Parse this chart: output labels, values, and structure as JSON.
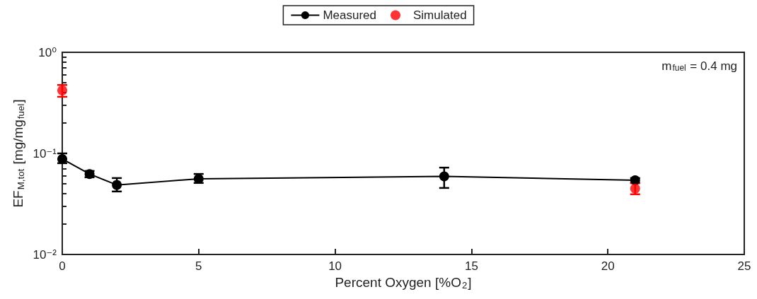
{
  "chart_data": {
    "type": "line",
    "xlabel": "Percent Oxygen [%O$_{2}$]",
    "ylabel": "EF$_{M,tot}$ [mg/mg$_{fuel}$]",
    "annotations": [
      "m$_{fuel}$ = 0.4 mg"
    ],
    "series": [
      {
        "name": "Measured",
        "color": "#000000",
        "x": [
          0,
          1,
          2,
          5,
          14,
          21
        ],
        "values": [
          0.088,
          0.0625,
          0.0487,
          0.056,
          0.0593,
          0.0542
        ],
        "errors": [
          [
            0.08,
            0.1
          ],
          [
            0.058,
            0.067
          ],
          [
            0.042,
            0.057
          ],
          [
            0.051,
            0.0626
          ],
          [
            0.0455,
            0.0723
          ],
          [
            0.051,
            0.057
          ]
        ]
      },
      {
        "name": "Simulated",
        "type": "scatter",
        "color": "#ff0000",
        "x": [
          0,
          21
        ],
        "values": [
          0.42,
          0.0448
        ],
        "errors": [
          [
            0.363,
            0.475
          ],
          [
            0.0394,
            0.0507
          ]
        ]
      }
    ],
    "xlim": [
      0,
      25
    ],
    "xticks": [
      0,
      5,
      10,
      15,
      20,
      25
    ],
    "ylim": [
      0.01,
      1
    ],
    "log": true,
    "yticks": [
      {
        "value": 0.01,
        "label": "10⁻²"
      },
      {
        "value": 0.02,
        "label": null
      },
      {
        "value": 0.03,
        "label": null
      },
      {
        "value": 0.04,
        "label": null
      },
      {
        "value": 0.05,
        "label": null
      },
      {
        "value": 0.06,
        "label": null
      },
      {
        "value": 0.07,
        "label": null
      },
      {
        "value": 0.08,
        "label": null
      },
      {
        "value": 0.09,
        "label": null
      },
      {
        "value": 0.1,
        "label": "10⁻¹"
      },
      {
        "value": 0.2,
        "label": null
      },
      {
        "value": 0.3,
        "label": null
      },
      {
        "value": 0.4,
        "label": null
      },
      {
        "value": 0.5,
        "label": null
      },
      {
        "value": 0.6,
        "label": null
      },
      {
        "value": 0.7,
        "label": null
      },
      {
        "value": 0.8,
        "label": null
      },
      {
        "value": 0.9,
        "label": null
      },
      {
        "value": 1,
        "label": "10⁰"
      }
    ],
    "grid": false,
    "legend": "top",
    "marker": "circle",
    "line_style": "solid"
  }
}
